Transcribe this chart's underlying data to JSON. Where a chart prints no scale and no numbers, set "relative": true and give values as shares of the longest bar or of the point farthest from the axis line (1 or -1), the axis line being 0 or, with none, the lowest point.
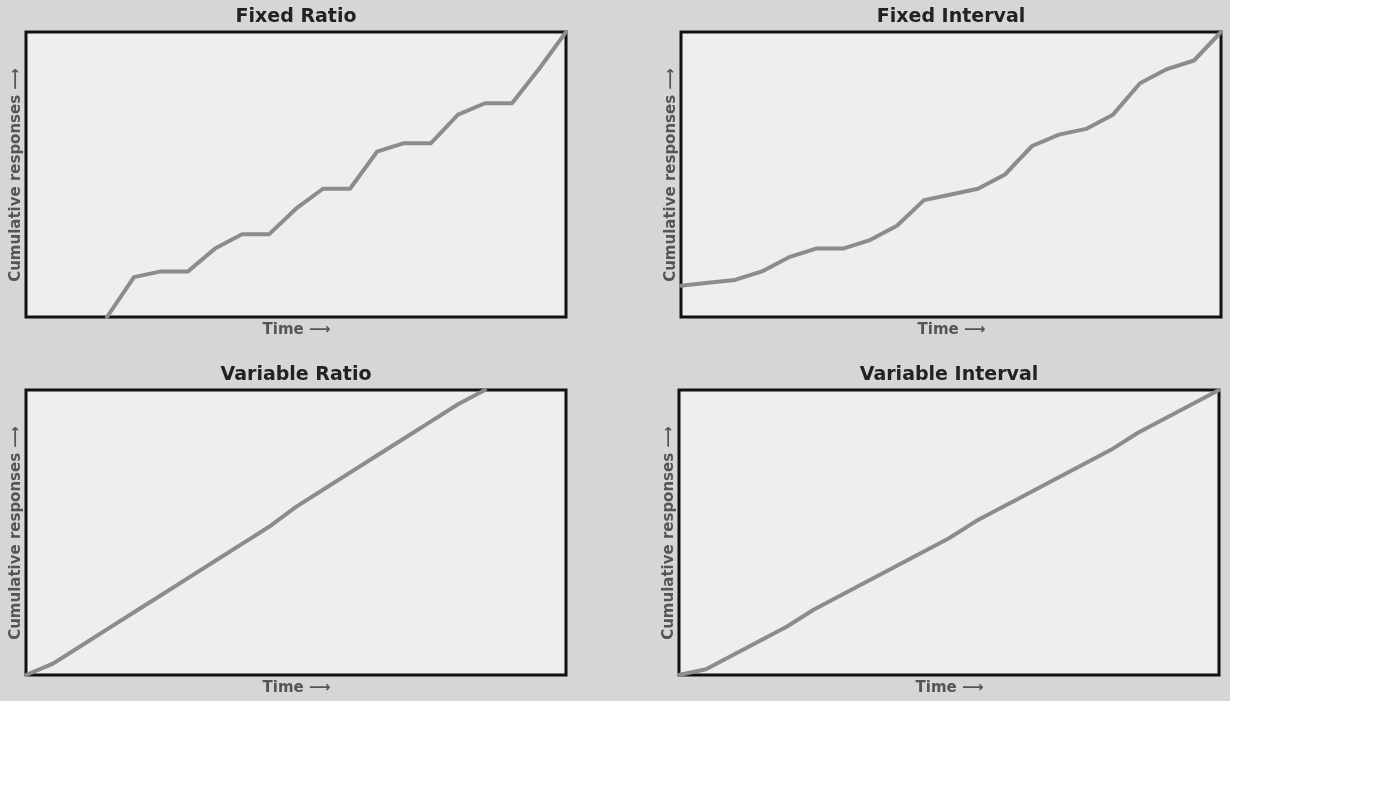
{
  "chart_data": [
    {
      "type": "line",
      "title": "Fixed Ratio",
      "xlabel": "Time ⟶",
      "ylabel": "Cumulative responses ⟶",
      "relative": true,
      "grid": false,
      "categories": [
        null,
        null,
        null,
        null,
        null,
        null,
        null,
        null,
        null,
        null,
        null,
        null,
        null,
        null,
        null,
        null,
        null,
        null,
        null,
        null,
        null
      ],
      "series": [
        {
          "color": "#8c8c8c",
          "values": [
            null,
            null,
            null,
            0,
            0.14,
            0.16,
            0.16,
            0.24,
            0.29,
            0.29,
            0.38,
            0.45,
            0.45,
            0.58,
            0.61,
            0.61,
            0.71,
            0.75,
            0.75,
            0.87,
            1
          ]
        }
      ]
    },
    {
      "type": "line",
      "title": "Fixed Interval",
      "xlabel": "Time ⟶",
      "ylabel": "Cumulative responses ⟶",
      "relative": true,
      "grid": false,
      "categories": [
        null,
        null,
        null,
        null,
        null,
        null,
        null,
        null,
        null,
        null,
        null,
        null,
        null,
        null,
        null,
        null,
        null,
        null,
        null,
        null,
        null
      ],
      "series": [
        {
          "color": "#8c8c8c",
          "values": [
            0.11,
            0.12,
            0.13,
            0.16,
            0.21,
            0.24,
            0.24,
            0.27,
            0.32,
            0.41,
            0.43,
            0.45,
            0.5,
            0.6,
            0.64,
            0.66,
            0.71,
            0.82,
            0.87,
            0.9,
            1
          ]
        }
      ]
    },
    {
      "type": "line",
      "title": "Variable Ratio",
      "xlabel": "Time ⟶",
      "ylabel": "Cumulative responses ⟶",
      "relative": true,
      "grid": false,
      "categories": [
        null,
        null,
        null,
        null,
        null,
        null,
        null,
        null,
        null,
        null,
        null,
        null,
        null,
        null,
        null,
        null,
        null,
        null,
        null,
        null,
        null
      ],
      "series": [
        {
          "color": "#8c8c8c",
          "values": [
            0,
            0.04,
            0.1,
            0.16,
            0.22,
            0.28,
            0.34,
            0.4,
            0.46,
            0.52,
            0.59,
            0.65,
            0.71,
            0.77,
            0.83,
            0.89,
            0.95,
            1,
            null,
            null,
            null
          ]
        }
      ]
    },
    {
      "type": "line",
      "title": "Variable Interval",
      "xlabel": "Time ⟶",
      "ylabel": "Cumulative responses ⟶",
      "relative": true,
      "grid": false,
      "categories": [
        null,
        null,
        null,
        null,
        null,
        null,
        null,
        null,
        null,
        null,
        null,
        null,
        null,
        null,
        null,
        null,
        null,
        null,
        null,
        null,
        null
      ],
      "series": [
        {
          "color": "#8c8c8c",
          "values": [
            0,
            0.02,
            0.07,
            0.12,
            0.17,
            0.23,
            0.28,
            0.33,
            0.38,
            0.43,
            0.48,
            0.54,
            0.59,
            0.64,
            0.69,
            0.74,
            0.79,
            0.85,
            0.9,
            0.95,
            1
          ]
        }
      ]
    }
  ]
}
